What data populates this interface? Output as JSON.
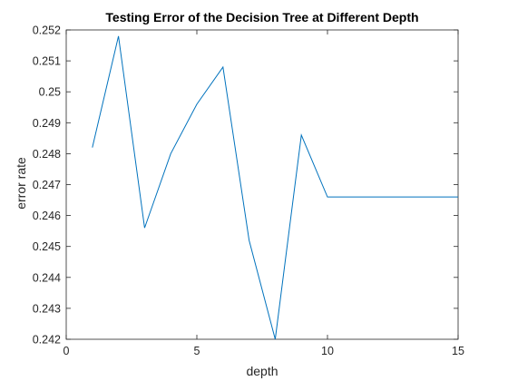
{
  "chart_data": {
    "type": "line",
    "title": "Testing Error of the Decision Tree at Different Depth",
    "xlabel": "depth",
    "ylabel": "error rate",
    "xlim": [
      0,
      15
    ],
    "ylim": [
      0.242,
      0.252
    ],
    "xticks": [
      0,
      5,
      10,
      15
    ],
    "xtick_labels": [
      "0",
      "5",
      "10",
      "15"
    ],
    "yticks": [
      0.242,
      0.243,
      0.244,
      0.245,
      0.246,
      0.247,
      0.248,
      0.249,
      0.25,
      0.251,
      0.252
    ],
    "ytick_labels": [
      "0.242",
      "0.243",
      "0.244",
      "0.245",
      "0.246",
      "0.247",
      "0.248",
      "0.249",
      "0.25",
      "0.251",
      "0.252"
    ],
    "grid": false,
    "series": [
      {
        "color": "#0072bd",
        "x": [
          1,
          2,
          3,
          4,
          5,
          6,
          7,
          8,
          9,
          10,
          11,
          12,
          13,
          14,
          15
        ],
        "y": [
          0.2482,
          0.2518,
          0.2456,
          0.248,
          0.2496,
          0.2508,
          0.2452,
          0.242,
          0.2486,
          0.2466,
          0.2466,
          0.2466,
          0.2466,
          0.2466,
          0.2466
        ]
      }
    ]
  }
}
